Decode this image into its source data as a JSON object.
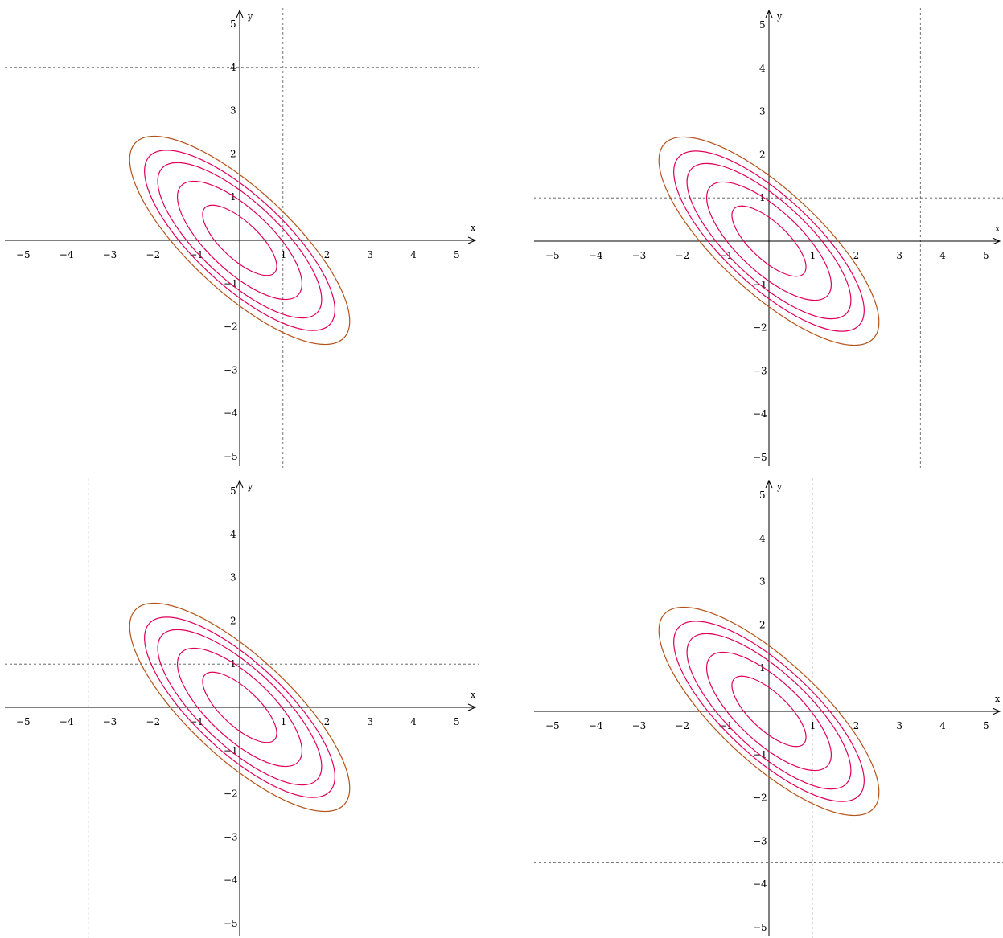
{
  "chart_data": [
    {
      "type": "contour",
      "xlabel": "x",
      "ylabel": "y",
      "xlim": [
        -5.5,
        5.5
      ],
      "ylim": [
        -5.3,
        5.3
      ],
      "x_ticks": [
        -5,
        -4,
        -3,
        -2,
        -1,
        1,
        2,
        3,
        4,
        5
      ],
      "y_ticks": [
        5,
        4,
        3,
        2,
        1,
        -1,
        -2,
        -3,
        -4,
        -5
      ],
      "contour_center": [
        0,
        0
      ],
      "contour_angle_deg": -43,
      "contour_levels": [
        {
          "semi_major": 1.1,
          "semi_minor": 0.43,
          "color": "#e0005a"
        },
        {
          "semi_major": 1.85,
          "semi_minor": 0.72,
          "color": "#e0005a"
        },
        {
          "semi_major": 2.45,
          "semi_minor": 0.9,
          "color": "#e0005a"
        },
        {
          "semi_major": 2.85,
          "semi_minor": 1.03,
          "color": "#e0005a"
        },
        {
          "semi_major": 3.3,
          "semi_minor": 1.17,
          "color": "#b5531b"
        }
      ],
      "reference_lines": {
        "vertical_x": 1,
        "horizontal_y": 4
      }
    },
    {
      "type": "contour",
      "xlabel": "x",
      "ylabel": "y",
      "xlim": [
        -5.5,
        5.5
      ],
      "ylim": [
        -5.3,
        5.3
      ],
      "x_ticks": [
        -5,
        -4,
        -3,
        -2,
        -1,
        1,
        2,
        3,
        4,
        5
      ],
      "y_ticks": [
        5,
        4,
        3,
        2,
        1,
        -1,
        -2,
        -3,
        -4,
        -5
      ],
      "contour_center": [
        0,
        0
      ],
      "contour_angle_deg": -43,
      "contour_levels": [
        {
          "semi_major": 1.1,
          "semi_minor": 0.43,
          "color": "#e0005a"
        },
        {
          "semi_major": 1.85,
          "semi_minor": 0.72,
          "color": "#e0005a"
        },
        {
          "semi_major": 2.45,
          "semi_minor": 0.9,
          "color": "#e0005a"
        },
        {
          "semi_major": 2.85,
          "semi_minor": 1.03,
          "color": "#e0005a"
        },
        {
          "semi_major": 3.3,
          "semi_minor": 1.17,
          "color": "#b5531b"
        }
      ],
      "reference_lines": {
        "vertical_x": 3.5,
        "horizontal_y": 1
      }
    },
    {
      "type": "contour",
      "xlabel": "x",
      "ylabel": "y",
      "xlim": [
        -5.5,
        5.5
      ],
      "ylim": [
        -5.3,
        5.3
      ],
      "x_ticks": [
        -5,
        -4,
        -3,
        -2,
        -1,
        1,
        2,
        3,
        4,
        5
      ],
      "y_ticks": [
        5,
        4,
        3,
        2,
        1,
        -1,
        -2,
        -3,
        -4,
        -5
      ],
      "contour_center": [
        0,
        0
      ],
      "contour_angle_deg": -43,
      "contour_levels": [
        {
          "semi_major": 1.1,
          "semi_minor": 0.43,
          "color": "#e0005a"
        },
        {
          "semi_major": 1.85,
          "semi_minor": 0.72,
          "color": "#e0005a"
        },
        {
          "semi_major": 2.45,
          "semi_minor": 0.9,
          "color": "#e0005a"
        },
        {
          "semi_major": 2.85,
          "semi_minor": 1.03,
          "color": "#e0005a"
        },
        {
          "semi_major": 3.3,
          "semi_minor": 1.17,
          "color": "#b5531b"
        }
      ],
      "reference_lines": {
        "vertical_x": -3.5,
        "horizontal_y": 1
      }
    },
    {
      "type": "contour",
      "xlabel": "x",
      "ylabel": "y",
      "xlim": [
        -5.5,
        5.5
      ],
      "ylim": [
        -5.3,
        5.3
      ],
      "x_ticks": [
        -5,
        -4,
        -3,
        -2,
        -1,
        1,
        2,
        3,
        4,
        5
      ],
      "y_ticks": [
        5,
        4,
        3,
        2,
        1,
        -1,
        -2,
        -3,
        -4,
        -5
      ],
      "contour_center": [
        0,
        0
      ],
      "contour_angle_deg": -43,
      "contour_levels": [
        {
          "semi_major": 1.1,
          "semi_minor": 0.43,
          "color": "#e0005a"
        },
        {
          "semi_major": 1.85,
          "semi_minor": 0.72,
          "color": "#e0005a"
        },
        {
          "semi_major": 2.45,
          "semi_minor": 0.9,
          "color": "#e0005a"
        },
        {
          "semi_major": 2.85,
          "semi_minor": 1.03,
          "color": "#e0005a"
        },
        {
          "semi_major": 3.3,
          "semi_minor": 1.17,
          "color": "#b5531b"
        }
      ],
      "reference_lines": {
        "vertical_x": 1,
        "horizontal_y": -3.5
      }
    }
  ]
}
